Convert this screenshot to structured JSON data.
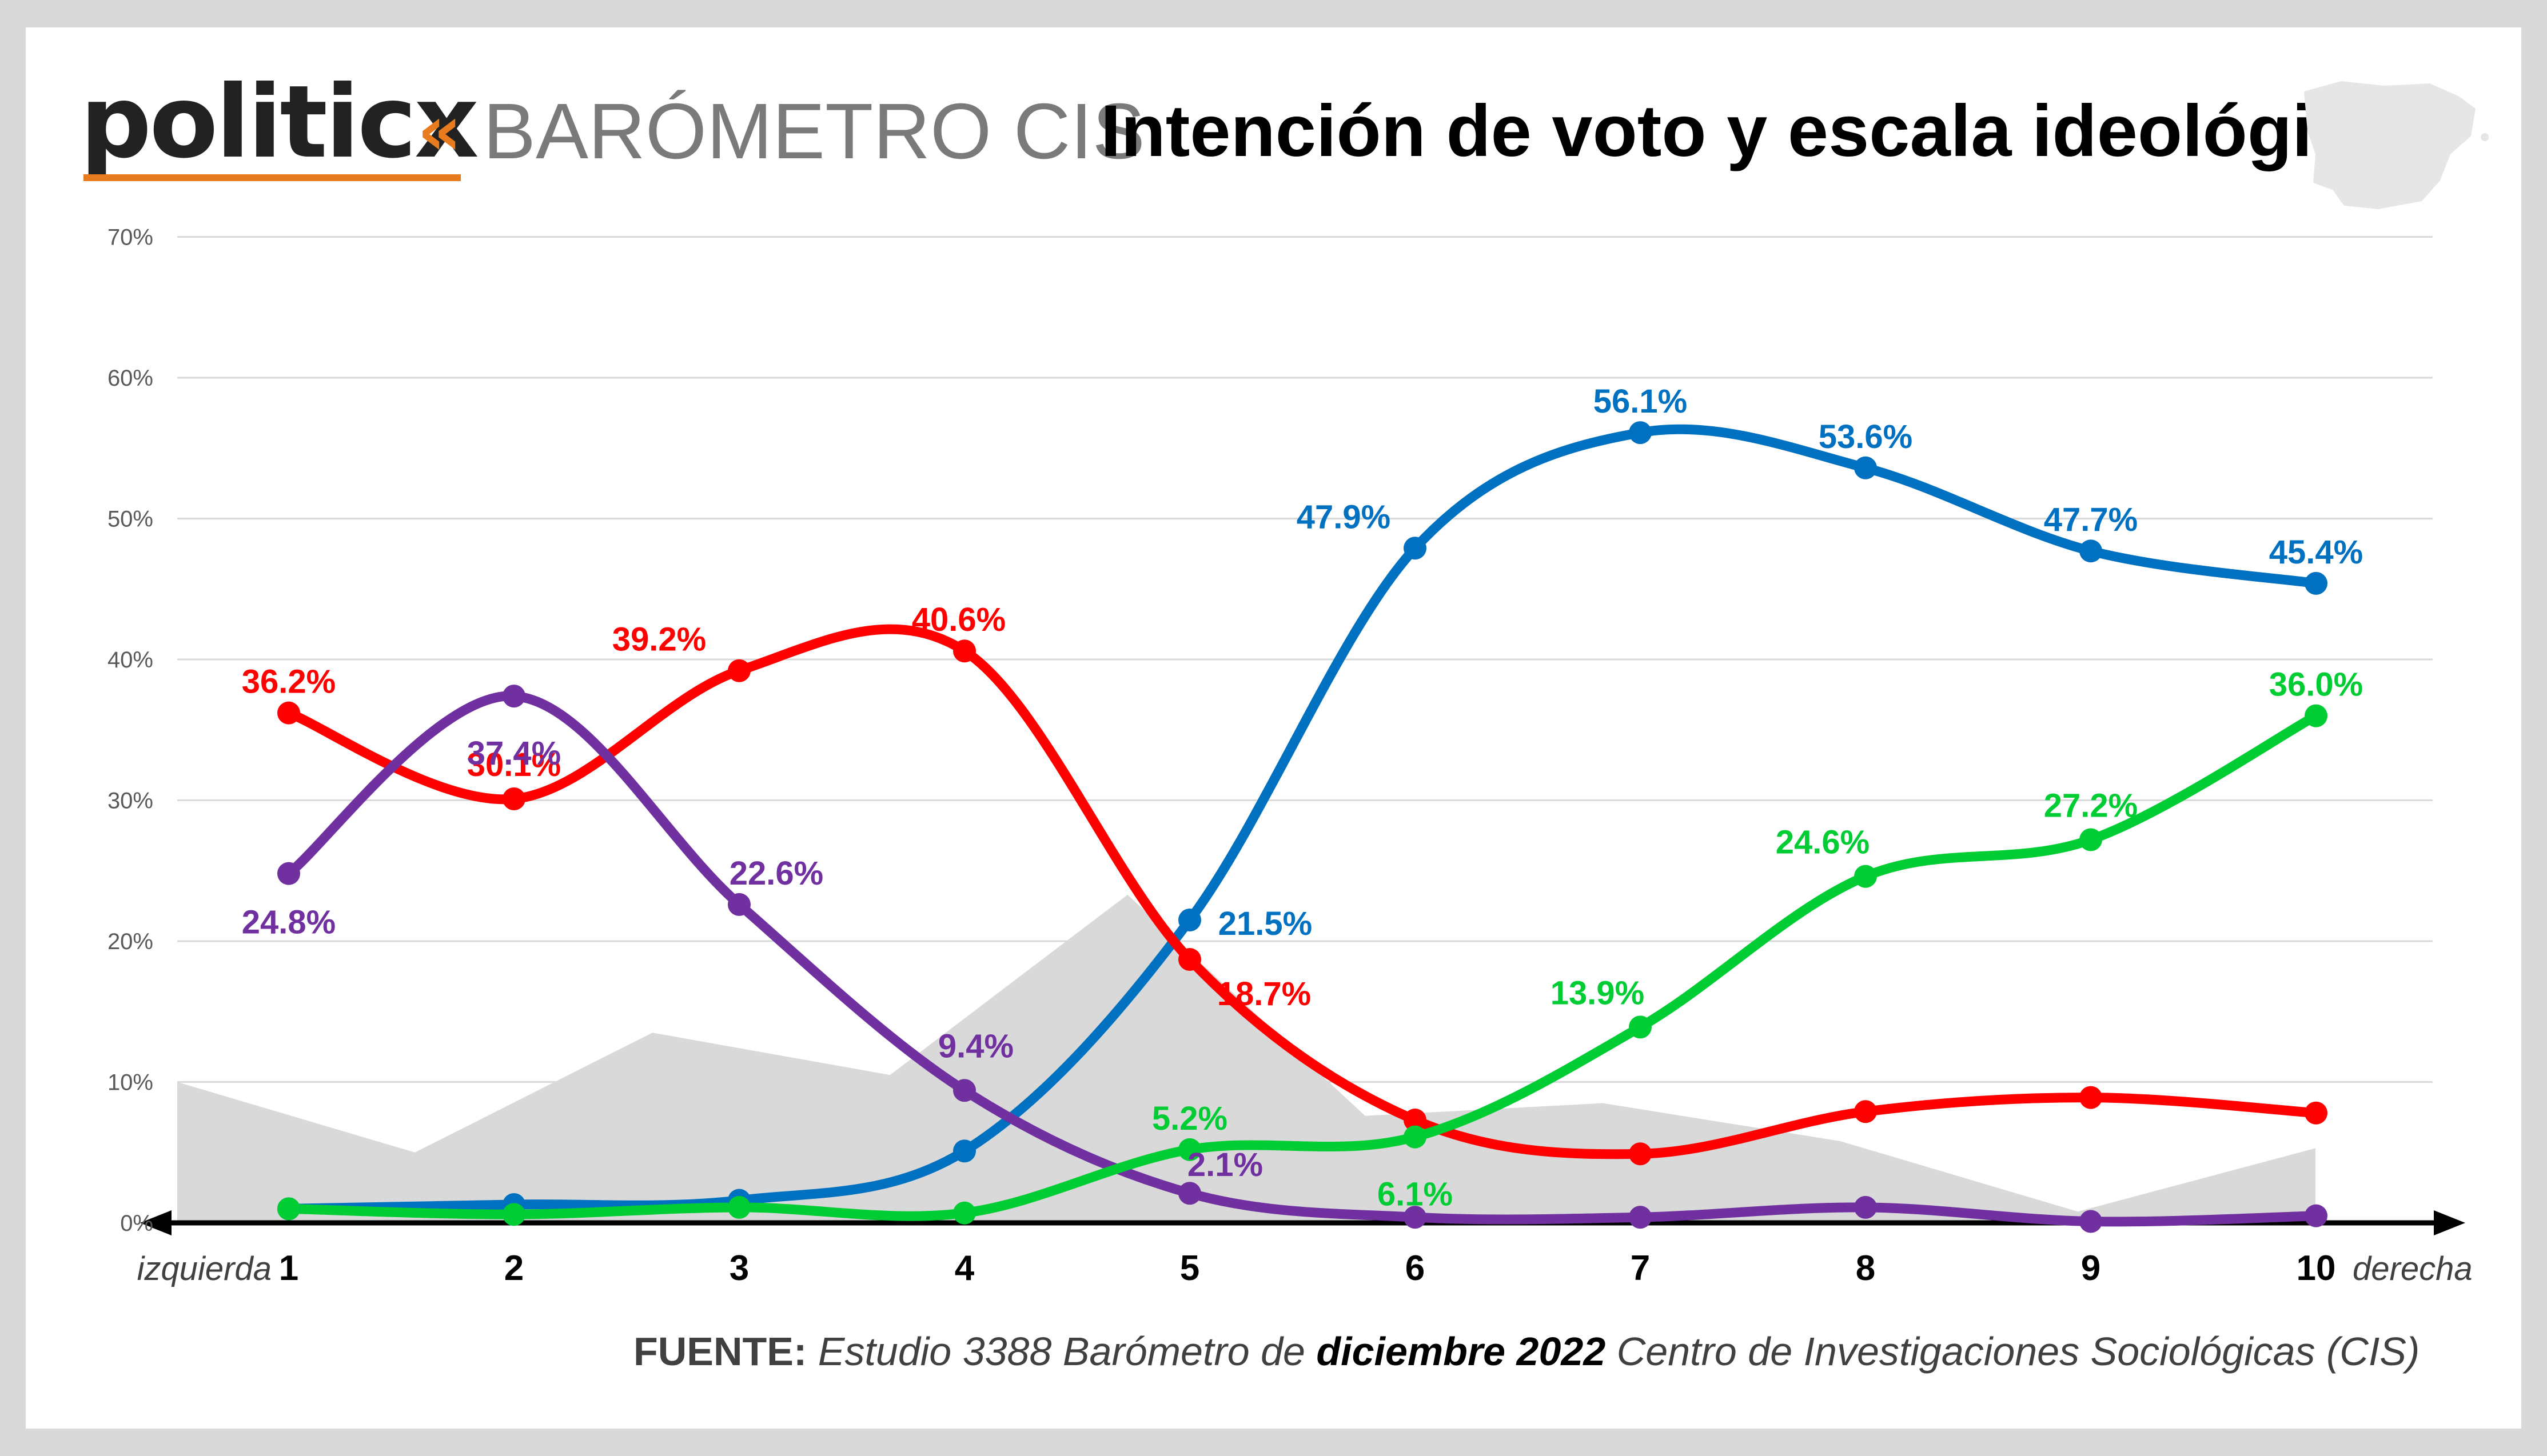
{
  "header": {
    "logo_text": "politicx",
    "logo_chevrons": "«",
    "brand_subtitle": "BARÓMETRO CIS",
    "title": "Intención de voto y escala ideológica"
  },
  "icons": {
    "map": "spain-map-icon",
    "logo": "politicx-chevron-icon"
  },
  "source": {
    "label": "FUENTE:",
    "text_before": " Estudio 3388 Barómetro de ",
    "highlight": "diciembre 2022",
    "text_after": " Centro de Investigaciones Sociológicas (CIS)"
  },
  "chart_data": {
    "type": "line",
    "title": "Intención de voto y escala ideológica",
    "xlabel_left": "izquierda",
    "xlabel_right": "derecha",
    "ylabel": "",
    "ylim": [
      0,
      70
    ],
    "ytick_labels": [
      "0%",
      "10%",
      "20%",
      "30%",
      "40%",
      "50%",
      "60%",
      "70%"
    ],
    "categories": [
      "1",
      "2",
      "3",
      "4",
      "5",
      "6",
      "7",
      "8",
      "9",
      "10"
    ],
    "grid": true,
    "background_area": {
      "color": "#d9d9d9",
      "values": [
        10.0,
        5.0,
        13.5,
        10.5,
        23.3,
        7.6,
        8.5,
        5.8,
        0.8,
        5.3
      ]
    },
    "series": [
      {
        "color": "#0070c0",
        "values": [
          1.0,
          1.3,
          1.6,
          5.1,
          21.5,
          47.9,
          56.1,
          53.6,
          47.7,
          45.4
        ],
        "labels": [
          "",
          "",
          "",
          "",
          "21.5%",
          "47.9%",
          "56.1%",
          "53.6%",
          "47.7%",
          "45.4%"
        ]
      },
      {
        "color": "#ff0000",
        "values": [
          36.2,
          30.1,
          39.2,
          40.6,
          18.7,
          7.3,
          4.9,
          7.9,
          8.9,
          7.8
        ],
        "labels": [
          "36.2%",
          "30.1%",
          "39.2%",
          "40.6%",
          "18.7%",
          "",
          "",
          "",
          "",
          ""
        ]
      },
      {
        "color": "#7030a0",
        "values": [
          24.8,
          37.4,
          22.6,
          9.4,
          2.1,
          0.4,
          0.4,
          1.1,
          0.1,
          0.5
        ],
        "labels": [
          "24.8%",
          "37.4%",
          "22.6%",
          "9.4%",
          "2.1%",
          "",
          "",
          "",
          "",
          ""
        ]
      },
      {
        "color": "#00cc33",
        "values": [
          1.0,
          0.6,
          1.1,
          0.7,
          5.2,
          6.1,
          13.9,
          24.6,
          27.2,
          36.0
        ],
        "labels": [
          "",
          "",
          "",
          "",
          "5.2%",
          "6.1%",
          "13.9%",
          "24.6%",
          "27.2%",
          "36.0%"
        ]
      }
    ]
  }
}
